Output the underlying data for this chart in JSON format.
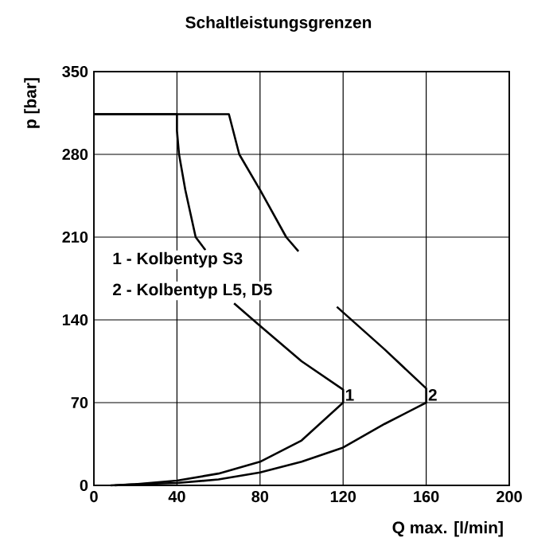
{
  "chart_data": {
    "type": "line",
    "title": "Schaltleistungsgrenzen",
    "xlabel": "Q max. [l/min]",
    "ylabel": "p [bar]",
    "xlim": [
      0,
      200
    ],
    "ylim": [
      0,
      350
    ],
    "xticks": [
      0,
      40,
      80,
      120,
      160,
      200
    ],
    "yticks": [
      0,
      70,
      140,
      210,
      280,
      350
    ],
    "grid": true,
    "marker": "none",
    "line_style": "solid",
    "series": [
      {
        "color": "#000000",
        "x": [
          0,
          40,
          40,
          41,
          44,
          49,
          53.7,
          60,
          67.5,
          80,
          100,
          120,
          120,
          100,
          80,
          60,
          40,
          20,
          8
        ],
        "values": [
          314,
          314,
          300,
          280,
          250,
          210,
          199,
          null,
          154,
          135,
          105,
          81,
          70,
          38,
          20,
          10,
          4,
          1,
          0
        ]
      },
      {
        "color": "#000000",
        "x": [
          0,
          65,
          70,
          80,
          92.6,
          98.5,
          108,
          117,
          140,
          160,
          160,
          140,
          120,
          100,
          80,
          60,
          40,
          20,
          10
        ],
        "values": [
          314,
          314,
          280,
          250,
          210,
          198,
          null,
          151,
          115,
          82,
          70,
          52,
          32,
          20,
          11,
          5,
          2,
          1,
          0
        ]
      }
    ],
    "annotations": [
      "1 - Kolbentyp S3",
      "2 - Kolbentyp L5, D5",
      {
        "text": "1",
        "x": 120,
        "y": 70
      },
      {
        "text": "2",
        "x": 160,
        "y": 70
      }
    ]
  }
}
